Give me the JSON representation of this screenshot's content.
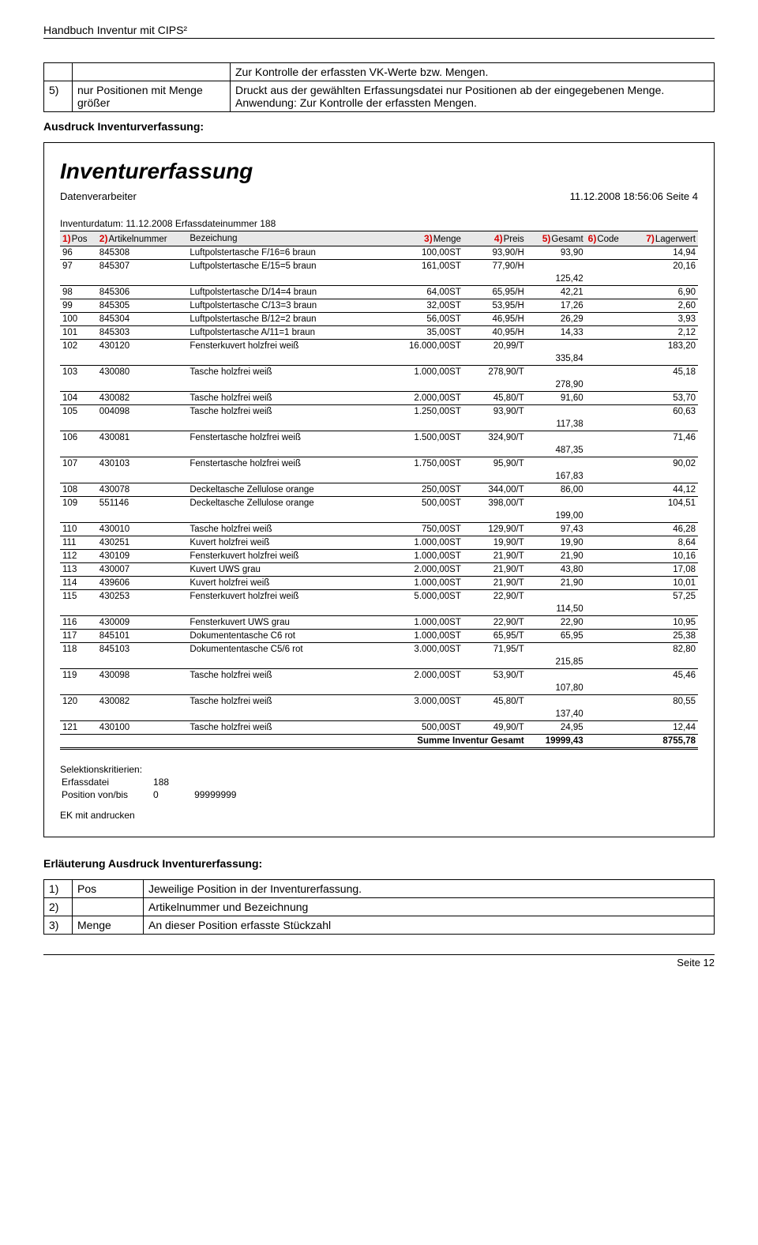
{
  "doc_header": "Handbuch Inventur mit CIPS²",
  "options": {
    "top_right": "Zur Kontrolle der erfassten VK-Werte bzw. Mengen.",
    "row5": {
      "num": "5)",
      "label": "nur Positionen mit Menge größer",
      "desc": "Druckt aus der gewählten Erfassungsdatei nur Positionen ab der eingegebenen Menge. Anwendung: Zur Kontrolle der erfassten Mengen."
    }
  },
  "section_label": "Ausdruck Inventurverfassung:",
  "report": {
    "title": "Inventurerfassung",
    "left_meta": "Datenverarbeiter",
    "right_meta": "11.12.2008 18:56:06 Seite 4",
    "inv_date": "Inventurdatum: 11.12.2008 Erfassdateinummer 188",
    "annotations": {
      "a1": "1)",
      "a2": "2)",
      "a3": "3)",
      "a4": "4)",
      "a5": "5)",
      "a6": "6)",
      "a7": "7)"
    },
    "headers": {
      "pos": "Pos",
      "art": "Artikelnummer",
      "bez": "Bezeichung",
      "menge": "Menge",
      "preis": "Preis",
      "ges": "Gesamt",
      "code": "Code",
      "lager": "Lagerwert"
    },
    "rows": [
      {
        "pos": "96",
        "art": "845308",
        "bez": "Luftpolstertasche F/16=6 braun",
        "menge": "100,00ST",
        "preis": "93,90/H",
        "ges": "93,90",
        "code": "",
        "lager": "14,94"
      },
      {
        "pos": "97",
        "art": "845307",
        "bez": "Luftpolstertasche E/15=5 braun",
        "menge": "161,00ST",
        "preis": "77,90/H",
        "ges": "",
        "code": "",
        "lager": "20,16",
        "sub": "125,42"
      },
      {
        "pos": "98",
        "art": "845306",
        "bez": "Luftpolstertasche D/14=4 braun",
        "menge": "64,00ST",
        "preis": "65,95/H",
        "ges": "42,21",
        "code": "",
        "lager": "6,90"
      },
      {
        "pos": "99",
        "art": "845305",
        "bez": "Luftpolstertasche C/13=3 braun",
        "menge": "32,00ST",
        "preis": "53,95/H",
        "ges": "17,26",
        "code": "",
        "lager": "2,60"
      },
      {
        "pos": "100",
        "art": "845304",
        "bez": "Luftpolstertasche B/12=2 braun",
        "menge": "56,00ST",
        "preis": "46,95/H",
        "ges": "26,29",
        "code": "",
        "lager": "3,93"
      },
      {
        "pos": "101",
        "art": "845303",
        "bez": "Luftpolstertasche A/11=1 braun",
        "menge": "35,00ST",
        "preis": "40,95/H",
        "ges": "14,33",
        "code": "",
        "lager": "2,12"
      },
      {
        "pos": "102",
        "art": "430120",
        "bez": "Fensterkuvert holzfrei weiß",
        "menge": "16.000,00ST",
        "preis": "20,99/T",
        "ges": "",
        "code": "",
        "lager": "183,20",
        "sub": "335,84"
      },
      {
        "pos": "103",
        "art": "430080",
        "bez": "Tasche holzfrei weiß",
        "menge": "1.000,00ST",
        "preis": "278,90/T",
        "ges": "",
        "code": "",
        "lager": "45,18",
        "sub": "278,90"
      },
      {
        "pos": "104",
        "art": "430082",
        "bez": "Tasche holzfrei weiß",
        "menge": "2.000,00ST",
        "preis": "45,80/T",
        "ges": "91,60",
        "code": "",
        "lager": "53,70"
      },
      {
        "pos": "105",
        "art": "004098",
        "bez": "Tasche holzfrei weiß",
        "menge": "1.250,00ST",
        "preis": "93,90/T",
        "ges": "",
        "code": "",
        "lager": "60,63",
        "sub": "117,38"
      },
      {
        "pos": "106",
        "art": "430081",
        "bez": "Fenstertasche holzfrei weiß",
        "menge": "1.500,00ST",
        "preis": "324,90/T",
        "ges": "",
        "code": "",
        "lager": "71,46",
        "sub": "487,35"
      },
      {
        "pos": "107",
        "art": "430103",
        "bez": "Fenstertasche holzfrei weiß",
        "menge": "1.750,00ST",
        "preis": "95,90/T",
        "ges": "",
        "code": "",
        "lager": "90,02",
        "sub": "167,83"
      },
      {
        "pos": "108",
        "art": "430078",
        "bez": "Deckeltasche Zellulose orange",
        "menge": "250,00ST",
        "preis": "344,00/T",
        "ges": "86,00",
        "code": "",
        "lager": "44,12"
      },
      {
        "pos": "109",
        "art": "551146",
        "bez": "Deckeltasche Zellulose orange",
        "menge": "500,00ST",
        "preis": "398,00/T",
        "ges": "",
        "code": "",
        "lager": "104,51",
        "sub": "199,00"
      },
      {
        "pos": "110",
        "art": "430010",
        "bez": "Tasche holzfrei weiß",
        "menge": "750,00ST",
        "preis": "129,90/T",
        "ges": "97,43",
        "code": "",
        "lager": "46,28"
      },
      {
        "pos": "111",
        "art": "430251",
        "bez": "Kuvert holzfrei weiß",
        "menge": "1.000,00ST",
        "preis": "19,90/T",
        "ges": "19,90",
        "code": "",
        "lager": "8,64"
      },
      {
        "pos": "112",
        "art": "430109",
        "bez": "Fensterkuvert holzfrei weiß",
        "menge": "1.000,00ST",
        "preis": "21,90/T",
        "ges": "21,90",
        "code": "",
        "lager": "10,16"
      },
      {
        "pos": "113",
        "art": "430007",
        "bez": "Kuvert UWS grau",
        "menge": "2.000,00ST",
        "preis": "21,90/T",
        "ges": "43,80",
        "code": "",
        "lager": "17,08"
      },
      {
        "pos": "114",
        "art": "439606",
        "bez": "Kuvert holzfrei weiß",
        "menge": "1.000,00ST",
        "preis": "21,90/T",
        "ges": "21,90",
        "code": "",
        "lager": "10,01"
      },
      {
        "pos": "115",
        "art": "430253",
        "bez": "Fensterkuvert holzfrei weiß",
        "menge": "5.000,00ST",
        "preis": "22,90/T",
        "ges": "",
        "code": "",
        "lager": "57,25",
        "sub": "114,50"
      },
      {
        "pos": "116",
        "art": "430009",
        "bez": "Fensterkuvert UWS grau",
        "menge": "1.000,00ST",
        "preis": "22,90/T",
        "ges": "22,90",
        "code": "",
        "lager": "10,95"
      },
      {
        "pos": "117",
        "art": "845101",
        "bez": "Dokumententasche C6 rot",
        "menge": "1.000,00ST",
        "preis": "65,95/T",
        "ges": "65,95",
        "code": "",
        "lager": "25,38"
      },
      {
        "pos": "118",
        "art": "845103",
        "bez": "Dokumententasche C5/6 rot",
        "menge": "3.000,00ST",
        "preis": "71,95/T",
        "ges": "",
        "code": "",
        "lager": "82,80",
        "sub": "215,85"
      },
      {
        "pos": "119",
        "art": "430098",
        "bez": "Tasche holzfrei weiß",
        "menge": "2.000,00ST",
        "preis": "53,90/T",
        "ges": "",
        "code": "",
        "lager": "45,46",
        "sub": "107,80"
      },
      {
        "pos": "120",
        "art": "430082",
        "bez": "Tasche holzfrei weiß",
        "menge": "3.000,00ST",
        "preis": "45,80/T",
        "ges": "",
        "code": "",
        "lager": "80,55",
        "sub": "137,40"
      },
      {
        "pos": "121",
        "art": "430100",
        "bez": "Tasche holzfrei weiß",
        "menge": "500,00ST",
        "preis": "49,90/T",
        "ges": "24,95",
        "code": "",
        "lager": "12,44"
      }
    ],
    "sum_label": "Summe Inventur Gesamt",
    "sum_ges": "19999,43",
    "sum_lager": "8755,78",
    "criteria_title": "Selektionskritierien:",
    "criteria": {
      "erfass_label": "Erfassdatei",
      "erfass_val": "188",
      "pos_label": "Position von/bis",
      "pos_from": "0",
      "pos_to": "99999999",
      "ek": "EK mit andrucken"
    }
  },
  "erl_title": "Erläuterung Ausdruck Inventurerfassung:",
  "erl_rows": [
    {
      "n": "1)",
      "k": "Pos",
      "v": "Jeweilige Position in der Inventurerfassung."
    },
    {
      "n": "2)",
      "k": "",
      "v": "Artikelnummer und Bezeichnung"
    },
    {
      "n": "3)",
      "k": "Menge",
      "v": "An dieser Position erfasste Stückzahl"
    }
  ],
  "page_footer": "Seite 12"
}
